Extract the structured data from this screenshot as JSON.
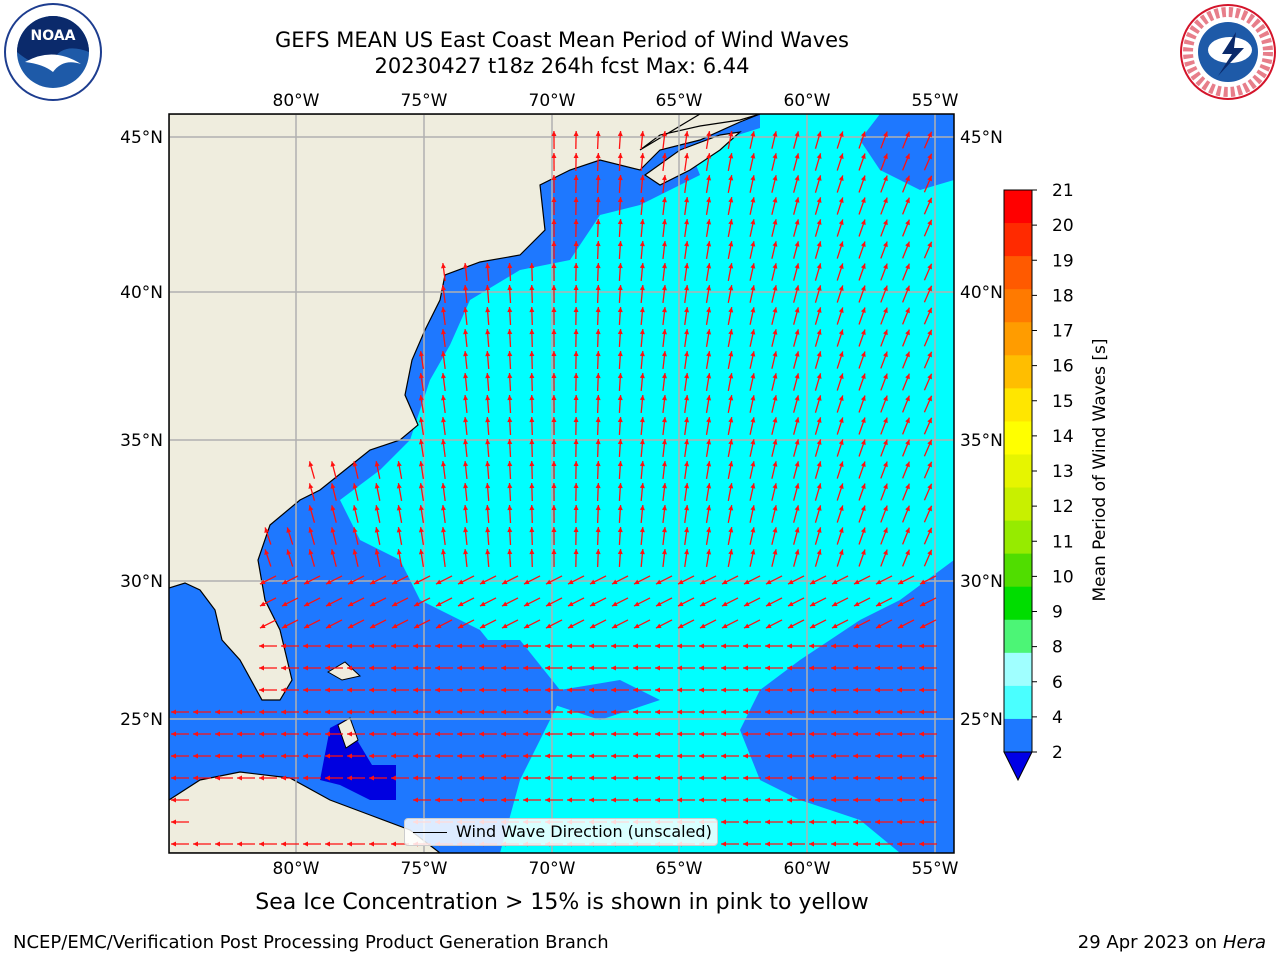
{
  "header": {
    "title_line1": "GEFS MEAN US East Coast Mean Period of Wind Waves",
    "title_line2": "20230427 t18z 264h fcst   Max: 6.44"
  },
  "map": {
    "lon_labels": [
      "80°W",
      "75°W",
      "70°W",
      "65°W",
      "60°W",
      "55°W"
    ],
    "lat_labels": [
      "45°N",
      "40°N",
      "35°N",
      "30°N",
      "25°N"
    ],
    "ocean_color": "#00ffff",
    "shelf_color": "#1e78ff",
    "deep_color": "#0000e0",
    "land_color": "#efedde",
    "arrow_color": "#ff1010"
  },
  "legend": {
    "label": "Wind Wave Direction (unscaled)"
  },
  "colorbar": {
    "label": "Mean Period of Wind Waves [s]",
    "ticks": [
      "21",
      "20",
      "19",
      "18",
      "17",
      "16",
      "15",
      "14",
      "13",
      "12",
      "11",
      "10",
      "9",
      "8",
      "6",
      "4",
      "2"
    ],
    "colors": [
      "#ff0000",
      "#ff2a00",
      "#ff5a00",
      "#ff7a00",
      "#ff9c00",
      "#ffbe00",
      "#ffe600",
      "#ffff00",
      "#e6f500",
      "#c8f000",
      "#96eb00",
      "#50dd00",
      "#00dd00",
      "#4cf576",
      "#a0ffff",
      "#4affff",
      "#00f0ff",
      "#1e78ff"
    ],
    "under_color": "#0000e6"
  },
  "footer": {
    "note": "Sea Ice Concentration > 15% is shown in pink to yellow",
    "credit": "NCEP/EMC/Verification Post Processing Product Generation Branch",
    "date": "29 Apr 2023 on",
    "host": "Hera"
  }
}
